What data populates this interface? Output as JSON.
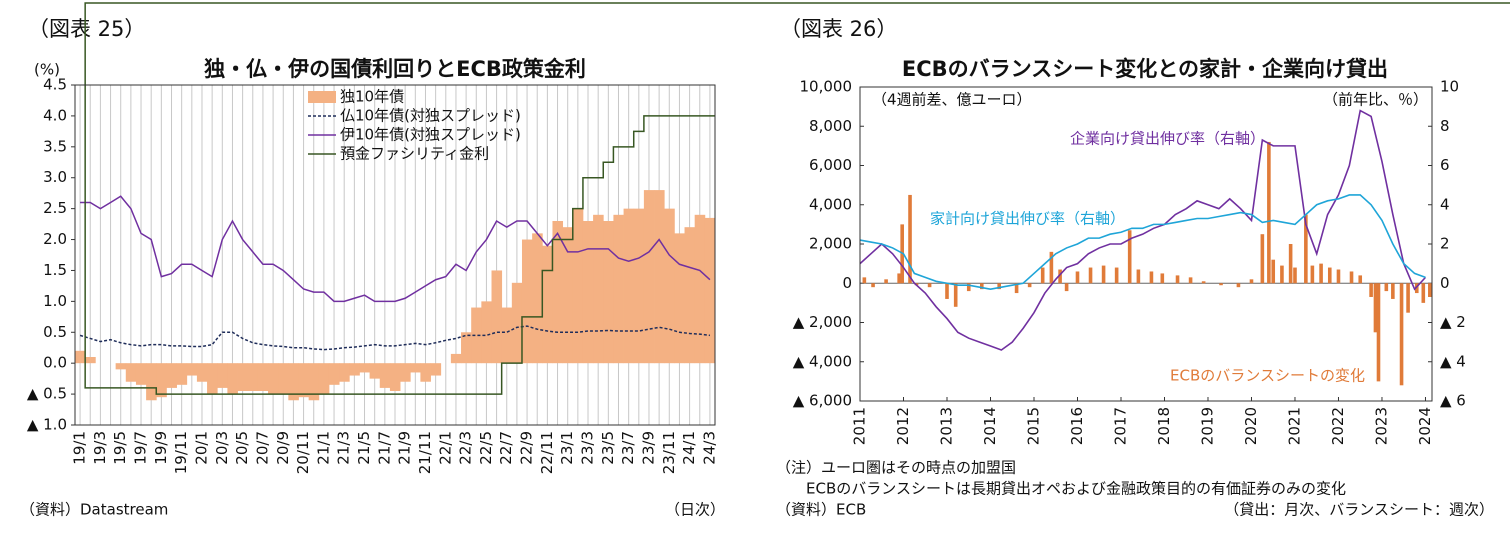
{
  "chart_data": [
    {
      "type": "combo",
      "panel_label": "（図表 25）",
      "title": "独・仏・伊の国債利回りとECB政策金利",
      "y_label": "(%)",
      "source": "（資料）Datastream",
      "frequency": "（日次）",
      "grid": true,
      "categories": [
        "19/1",
        null,
        "19/3",
        null,
        "19/5",
        null,
        "19/7",
        null,
        "19/9",
        null,
        "19/11",
        null,
        "20/1",
        null,
        "20/3",
        null,
        "20/5",
        null,
        "20/7",
        null,
        "20/9",
        null,
        "20/11",
        null,
        "21/1",
        null,
        "21/3",
        null,
        "21/5",
        null,
        "21/7",
        null,
        "21/9",
        null,
        "21/11",
        null,
        "22/1",
        null,
        "22/3",
        null,
        "22/5",
        null,
        "22/7",
        null,
        "22/9",
        null,
        "22/11",
        null,
        "23/1",
        null,
        "23/3",
        null,
        "23/5",
        null,
        "23/7",
        null,
        "23/9",
        null,
        "23/11",
        null,
        "24/1",
        null,
        "24/3"
      ],
      "ylim": [
        -1,
        4.5
      ],
      "yticks": [
        {
          "value": -1,
          "label": "▲ 1.0"
        },
        {
          "value": -0.5,
          "label": "▲ 0.5"
        },
        {
          "value": 0,
          "label": "0.0"
        },
        0.5,
        {
          "value": 1,
          "label": "1.0"
        },
        1.5,
        {
          "value": 2,
          "label": "2.0"
        },
        2.5,
        {
          "value": 3,
          "label": "3.0"
        },
        3.5,
        {
          "value": 4,
          "label": "4.0"
        },
        4.5
      ],
      "series": [
        {
          "name": "独10年債",
          "type": "bar",
          "color": "#f4b183",
          "values": [
            0.2,
            0.1,
            0.0,
            0.0,
            -0.1,
            -0.3,
            -0.35,
            -0.6,
            -0.55,
            -0.4,
            -0.35,
            -0.2,
            -0.3,
            -0.5,
            -0.4,
            -0.5,
            -0.45,
            -0.45,
            -0.45,
            -0.5,
            -0.5,
            -0.6,
            -0.55,
            -0.6,
            -0.5,
            -0.35,
            -0.3,
            -0.2,
            -0.15,
            -0.25,
            -0.4,
            -0.45,
            -0.3,
            -0.15,
            -0.3,
            -0.2,
            0.0,
            0.15,
            0.5,
            0.9,
            1.0,
            1.5,
            0.9,
            1.3,
            2.0,
            2.1,
            1.9,
            2.3,
            2.2,
            2.5,
            2.3,
            2.4,
            2.3,
            2.4,
            2.5,
            2.5,
            2.8,
            2.8,
            2.5,
            2.1,
            2.2,
            2.4,
            2.35
          ]
        },
        {
          "name": "仏10年債(対独スプレッド)",
          "type": "line",
          "dash": true,
          "color": "#1f2d5a",
          "values": [
            0.45,
            0.4,
            0.35,
            0.38,
            0.33,
            0.3,
            0.28,
            0.3,
            0.3,
            0.28,
            0.28,
            0.27,
            0.27,
            0.3,
            0.5,
            0.5,
            0.4,
            0.33,
            0.3,
            0.28,
            0.27,
            0.25,
            0.25,
            0.23,
            0.22,
            0.23,
            0.25,
            0.26,
            0.28,
            0.3,
            0.28,
            0.28,
            0.3,
            0.32,
            0.3,
            0.33,
            0.37,
            0.4,
            0.45,
            0.45,
            0.45,
            0.5,
            0.5,
            0.58,
            0.6,
            0.55,
            0.52,
            0.5,
            0.5,
            0.5,
            0.52,
            0.52,
            0.53,
            0.52,
            0.52,
            0.52,
            0.55,
            0.58,
            0.55,
            0.5,
            0.48,
            0.47,
            0.45
          ]
        },
        {
          "name": "伊10年債(対独スプレッド)",
          "type": "line",
          "color": "#7030a0",
          "values": [
            2.6,
            2.6,
            2.5,
            2.6,
            2.7,
            2.5,
            2.1,
            2.0,
            1.4,
            1.45,
            1.6,
            1.6,
            1.5,
            1.4,
            2.0,
            2.3,
            2.0,
            1.8,
            1.6,
            1.6,
            1.5,
            1.35,
            1.2,
            1.15,
            1.15,
            1.0,
            1.0,
            1.05,
            1.1,
            1.0,
            1.0,
            1.0,
            1.05,
            1.15,
            1.25,
            1.35,
            1.4,
            1.6,
            1.5,
            1.8,
            2.0,
            2.3,
            2.2,
            2.3,
            2.3,
            2.1,
            1.9,
            2.1,
            1.8,
            1.8,
            1.85,
            1.85,
            1.85,
            1.7,
            1.65,
            1.7,
            1.8,
            2.0,
            1.75,
            1.6,
            1.55,
            1.5,
            1.35
          ]
        },
        {
          "name": "預金ファシリティ金利",
          "type": "step",
          "color": "#385723",
          "values": [
            -0.4,
            -0.4,
            -0.4,
            -0.4,
            -0.4,
            -0.4,
            -0.4,
            -0.4,
            -0.5,
            -0.5,
            -0.5,
            -0.5,
            -0.5,
            -0.5,
            -0.5,
            -0.5,
            -0.5,
            -0.5,
            -0.5,
            -0.5,
            -0.5,
            -0.5,
            -0.5,
            -0.5,
            -0.5,
            -0.5,
            -0.5,
            -0.5,
            -0.5,
            -0.5,
            -0.5,
            -0.5,
            -0.5,
            -0.5,
            -0.5,
            -0.5,
            -0.5,
            -0.5,
            -0.5,
            -0.5,
            -0.5,
            -0.5,
            0,
            0,
            0.75,
            0.75,
            1.5,
            2.0,
            2.0,
            2.5,
            3.0,
            3.0,
            3.25,
            3.5,
            3.5,
            3.75,
            4.0,
            4.0,
            4.0,
            4.0,
            4.0,
            4.0,
            4.0
          ]
        }
      ]
    },
    {
      "type": "combo",
      "panel_label": "（図表 26）",
      "title": "ECBのバランスシート変化との家計・企業向け貸出",
      "notes": [
        "（注）ユーロ圏はその時点の加盟国",
        "ECBのバランスシートは長期貸出オペおよび金融政策目的の有価証券のみの変化"
      ],
      "source": "（資料）ECB",
      "frequency": "（貸出：月次、バランスシート：週次）",
      "annotations": [
        "（4週前差、億ユーロ）",
        "（前年比、％）",
        "企業向け貸出伸び率（右軸）",
        "家計向け貸出伸び率（右軸）",
        "ECBのバランスシートの変化"
      ],
      "xlim": [
        2011,
        2024.15
      ],
      "xticks": [
        2011,
        2012,
        2013,
        2014,
        2015,
        2016,
        2017,
        2018,
        2019,
        2020,
        2021,
        2022,
        2023,
        2024
      ],
      "ylim": [
        -6000,
        10000
      ],
      "yticks": [
        {
          "value": -6000,
          "label": "▲ 6,000"
        },
        {
          "value": -4000,
          "label": "▲ 4,000"
        },
        {
          "value": -2000,
          "label": "▲ 2,000"
        },
        0,
        {
          "value": 2000,
          "label": "2,000"
        },
        {
          "value": 4000,
          "label": "4,000"
        },
        {
          "value": 6000,
          "label": "6,000"
        },
        {
          "value": 8000,
          "label": "8,000"
        },
        {
          "value": 10000,
          "label": "10,000"
        }
      ],
      "y2lim": [
        -6,
        10
      ],
      "y2ticks": [
        {
          "value": -6,
          "label": "▲ 6"
        },
        {
          "value": -4,
          "label": "▲ 4"
        },
        {
          "value": -2,
          "label": "▲ 2"
        },
        0,
        2,
        4,
        6,
        8,
        10
      ],
      "series": [
        {
          "name": "ECBのバランスシートの変化",
          "type": "bar",
          "color": "#e07b39",
          "x": [
            2011.1,
            2011.3,
            2011.6,
            2011.9,
            2011.97,
            2012.15,
            2012.3,
            2012.6,
            2013.0,
            2013.2,
            2013.5,
            2013.8,
            2014.2,
            2014.6,
            2014.9,
            2015.2,
            2015.4,
            2015.6,
            2015.75,
            2016.0,
            2016.3,
            2016.6,
            2016.9,
            2017.2,
            2017.4,
            2017.7,
            2017.95,
            2018.3,
            2018.6,
            2018.9,
            2019.3,
            2019.7,
            2020.0,
            2020.25,
            2020.4,
            2020.5,
            2020.7,
            2020.9,
            2021.0,
            2021.25,
            2021.4,
            2021.6,
            2021.8,
            2022.0,
            2022.3,
            2022.5,
            2022.75,
            2022.85,
            2022.92,
            2023.1,
            2023.25,
            2023.45,
            2023.6,
            2023.8,
            2023.95,
            2024.1
          ],
          "values": [
            300,
            -200,
            200,
            500,
            3000,
            4500,
            -100,
            -200,
            -800,
            -1200,
            -400,
            -300,
            -300,
            -500,
            -200,
            800,
            1600,
            700,
            -400,
            600,
            800,
            900,
            800,
            2700,
            700,
            600,
            500,
            400,
            300,
            100,
            -100,
            -200,
            200,
            2500,
            7200,
            1200,
            900,
            2000,
            800,
            3500,
            900,
            1000,
            800,
            700,
            600,
            400,
            -700,
            -2500,
            -5000,
            -400,
            -800,
            -5200,
            -1500,
            -500,
            -1000,
            -700
          ]
        },
        {
          "name": "企業向け貸出伸び率（右軸）",
          "type": "line",
          "axis": "y2",
          "color": "#7030a0",
          "x": [
            2011,
            2011.25,
            2011.5,
            2011.75,
            2012,
            2012.25,
            2012.5,
            2012.75,
            2013,
            2013.25,
            2013.5,
            2013.75,
            2014,
            2014.25,
            2014.5,
            2014.75,
            2015,
            2015.25,
            2015.5,
            2015.75,
            2016,
            2016.25,
            2016.5,
            2016.75,
            2017,
            2017.25,
            2017.5,
            2017.75,
            2018,
            2018.25,
            2018.5,
            2018.75,
            2019,
            2019.25,
            2019.5,
            2019.75,
            2020,
            2020.25,
            2020.5,
            2020.75,
            2021,
            2021.25,
            2021.5,
            2021.75,
            2022,
            2022.25,
            2022.5,
            2022.75,
            2023,
            2023.25,
            2023.5,
            2023.75,
            2024
          ],
          "values": [
            1.0,
            1.5,
            2.0,
            1.5,
            0.8,
            0.0,
            -0.5,
            -1.2,
            -1.8,
            -2.5,
            -2.8,
            -3.0,
            -3.2,
            -3.4,
            -3.0,
            -2.3,
            -1.5,
            -0.5,
            0.2,
            0.8,
            1.0,
            1.5,
            1.8,
            2.0,
            2.0,
            2.3,
            2.5,
            2.8,
            3.0,
            3.5,
            3.8,
            4.2,
            4.0,
            3.8,
            4.3,
            3.8,
            3.2,
            7.3,
            7.0,
            7.0,
            7.0,
            3.0,
            1.5,
            3.5,
            4.5,
            6.0,
            8.8,
            8.5,
            6.2,
            3.5,
            1.0,
            -0.3,
            0.3
          ]
        },
        {
          "name": "家計向け貸出伸び率（右軸）",
          "type": "line",
          "axis": "y2",
          "color": "#1fa5d8",
          "x": [
            2011,
            2011.25,
            2011.5,
            2011.75,
            2012,
            2012.25,
            2012.5,
            2012.75,
            2013,
            2013.25,
            2013.5,
            2013.75,
            2014,
            2014.25,
            2014.5,
            2014.75,
            2015,
            2015.25,
            2015.5,
            2015.75,
            2016,
            2016.25,
            2016.5,
            2016.75,
            2017,
            2017.25,
            2017.5,
            2017.75,
            2018,
            2018.25,
            2018.5,
            2018.75,
            2019,
            2019.25,
            2019.5,
            2019.75,
            2020,
            2020.25,
            2020.5,
            2020.75,
            2021,
            2021.25,
            2021.5,
            2021.75,
            2022,
            2022.25,
            2022.5,
            2022.75,
            2023,
            2023.25,
            2023.5,
            2023.75,
            2024
          ],
          "values": [
            2.2,
            2.1,
            2.0,
            1.8,
            1.5,
            0.5,
            0.3,
            0.1,
            0.0,
            -0.1,
            -0.1,
            -0.2,
            -0.3,
            -0.2,
            -0.1,
            0.0,
            0.5,
            1.0,
            1.5,
            1.8,
            2.0,
            2.3,
            2.3,
            2.5,
            2.6,
            2.8,
            2.8,
            3.0,
            3.0,
            3.1,
            3.2,
            3.3,
            3.3,
            3.4,
            3.5,
            3.6,
            3.5,
            3.1,
            3.2,
            3.1,
            3.0,
            3.5,
            4.0,
            4.2,
            4.3,
            4.5,
            4.5,
            4.0,
            3.2,
            2.0,
            1.0,
            0.5,
            0.3
          ]
        }
      ]
    }
  ]
}
